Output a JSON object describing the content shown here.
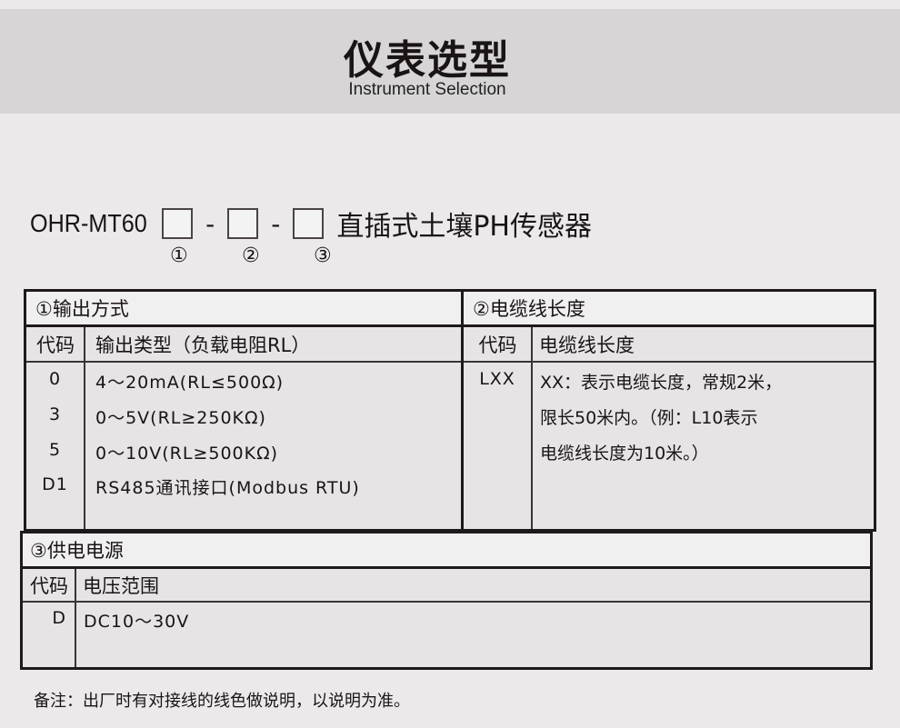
{
  "header": {
    "title": "仪表选型",
    "subtitle": "Instrument Selection"
  },
  "model": {
    "prefix": "OHR-MT60",
    "separator": "-",
    "name": "直插式土壤PH传感器",
    "markers": [
      "①",
      "②",
      "③"
    ]
  },
  "output": {
    "title": "①输出方式",
    "col_code": "代码",
    "col_type": "输出类型（负载电阻RL）",
    "rows": [
      {
        "code": "0",
        "type": "4～20mA(RL≤500Ω)"
      },
      {
        "code": "3",
        "type": "0～5V(RL≥250KΩ)"
      },
      {
        "code": "5",
        "type": "0～10V(RL≥500KΩ)"
      },
      {
        "code": "D1",
        "type": "RS485通讯接口(Modbus RTU)"
      }
    ]
  },
  "cable": {
    "title": "②电缆线长度",
    "col_code": "代码",
    "col_len": "电缆线长度",
    "code": "LXX",
    "desc": [
      "XX：表示电缆长度，常规2米，",
      "限长50米内。（例：L10表示",
      "电缆线长度为10米。）"
    ]
  },
  "power": {
    "title": "③供电电源",
    "col_code": "代码",
    "col_range": "电压范围",
    "code": "D",
    "range": "DC10～30V"
  },
  "note": "备注：出厂时有对接线的线色做说明，以说明为准。"
}
